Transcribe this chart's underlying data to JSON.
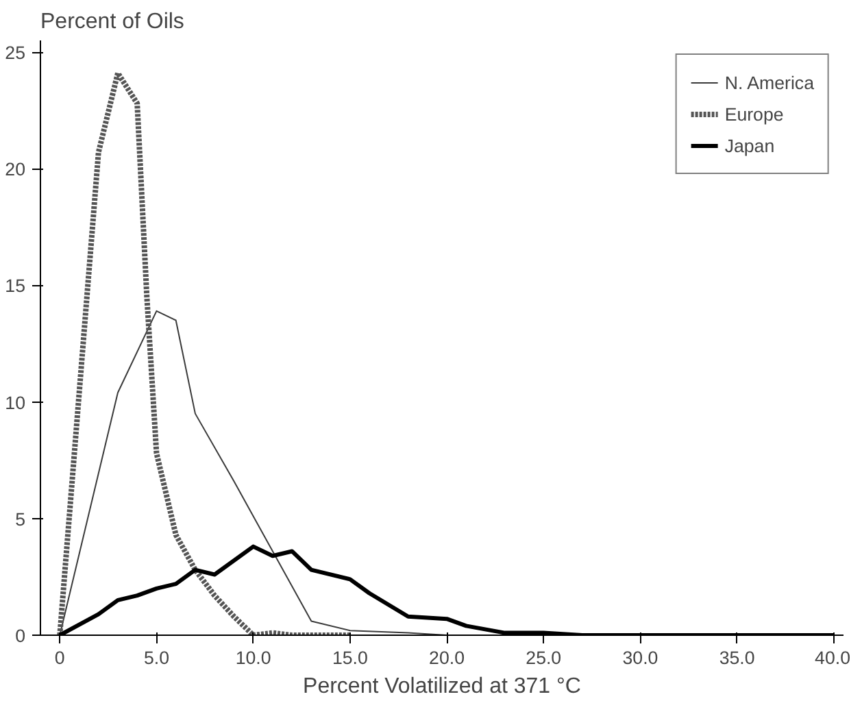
{
  "chart_data": {
    "type": "line",
    "ylabel": "Percent of Oils",
    "xlabel": "Percent Volatilized at 371 °C",
    "xlim": [
      -1,
      40.5
    ],
    "ylim": [
      0,
      25.5
    ],
    "xticks": [
      {
        "value": 0,
        "label": "0"
      },
      {
        "value": 5,
        "label": "5.0"
      },
      {
        "value": 10,
        "label": "10.0"
      },
      {
        "value": 15,
        "label": "15.0"
      },
      {
        "value": 20,
        "label": "20.0"
      },
      {
        "value": 25,
        "label": "25.0"
      },
      {
        "value": 30,
        "label": "30.0"
      },
      {
        "value": 35,
        "label": "35.0"
      },
      {
        "value": 40,
        "label": "40.0"
      }
    ],
    "yticks": [
      0,
      5,
      10,
      15,
      20,
      25
    ],
    "grid": false,
    "legend": "top right",
    "marker": "none",
    "series": [
      {
        "name": "N. America",
        "color": "#3a3a3a",
        "line_style": "solid",
        "x": [
          0,
          3,
          5,
          6,
          7,
          9,
          13,
          15,
          18,
          20,
          25
        ],
        "values": [
          0,
          10.4,
          13.9,
          13.5,
          9.5,
          6.6,
          0.6,
          0.2,
          0.1,
          0,
          0
        ]
      },
      {
        "name": "Europe",
        "color": "#555555",
        "line_style": "dotted",
        "x": [
          0,
          2,
          3,
          4,
          4.5,
          5,
          6,
          7,
          8,
          9,
          10,
          11,
          12,
          15
        ],
        "values": [
          0,
          20.7,
          24.1,
          22.8,
          14.5,
          7.8,
          4.3,
          2.8,
          1.7,
          0.8,
          0,
          0.1,
          0,
          0
        ]
      },
      {
        "name": "Japan",
        "color": "#000000",
        "line_style": "solid",
        "x": [
          0,
          2,
          3,
          4,
          5,
          6,
          7,
          8,
          10,
          11,
          12,
          13,
          15,
          16,
          18,
          20,
          21,
          23,
          25,
          27,
          40
        ],
        "values": [
          0,
          0.9,
          1.5,
          1.7,
          2.0,
          2.2,
          2.8,
          2.6,
          3.8,
          3.4,
          3.6,
          2.8,
          2.4,
          1.8,
          0.8,
          0.7,
          0.4,
          0.1,
          0.1,
          0,
          0
        ]
      }
    ]
  }
}
